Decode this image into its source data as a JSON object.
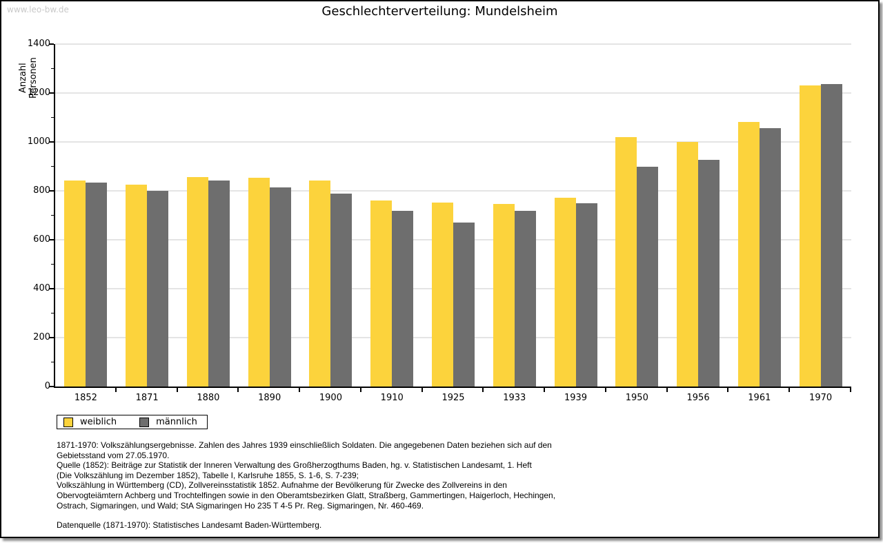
{
  "watermark": "www.leo-bw.de",
  "chart_data": {
    "type": "bar",
    "title": "Geschlechterverteilung: Mundelsheim",
    "ylabel": "Anzahl Personen",
    "xlabel": "",
    "categories": [
      "1852",
      "1871",
      "1880",
      "1890",
      "1900",
      "1910",
      "1925",
      "1933",
      "1939",
      "1950",
      "1956",
      "1961",
      "1970"
    ],
    "series": [
      {
        "name": "weiblich",
        "color": "#FCD33C",
        "values": [
          842,
          825,
          856,
          853,
          841,
          762,
          753,
          746,
          771,
          1019,
          1000,
          1083,
          1230
        ]
      },
      {
        "name": "männlich",
        "color": "#6E6E6E",
        "values": [
          835,
          799,
          842,
          815,
          789,
          717,
          671,
          719,
          748,
          900,
          927,
          1055,
          1236
        ]
      }
    ],
    "ylim": [
      0,
      1400
    ],
    "ytick_step": 200,
    "minor_tick_step": 100,
    "grid": true,
    "legend_position": "bottom-left"
  },
  "footnotes": {
    "lines": [
      "1871-1970: Volkszählungsergebnisse. Zahlen des Jahres 1939 einschließlich Soldaten. Die angegebenen Daten beziehen sich auf den",
      "Gebietsstand vom 27.05.1970.",
      "Quelle (1852): Beiträge zur Statistik der Inneren Verwaltung des Großherzogthums Baden, hg. v. Statistischen Landesamt, 1. Heft",
      "(Die Volkszählung im Dezember 1852), Tabelle I, Karlsruhe 1855, S. 1-6, S. 7-239;",
      "Volkszählung in Württemberg (CD), Zollvereinsstatistik 1852. Aufnahme der Bevölkerung für Zwecke des Zollvereins in den",
      "Obervogteiämtern Achberg und Trochtelfingen sowie in den Oberamtsbezirken Glatt, Straßberg, Gammertingen, Haigerloch, Hechingen,",
      "Ostrach, Sigmaringen, und Wald; StA Sigmaringen Ho 235 T 4-5 Pr. Reg. Sigmaringen, Nr. 460-469."
    ],
    "datasource": "Datenquelle (1871-1970): Statistisches Landesamt Baden-Württemberg."
  }
}
